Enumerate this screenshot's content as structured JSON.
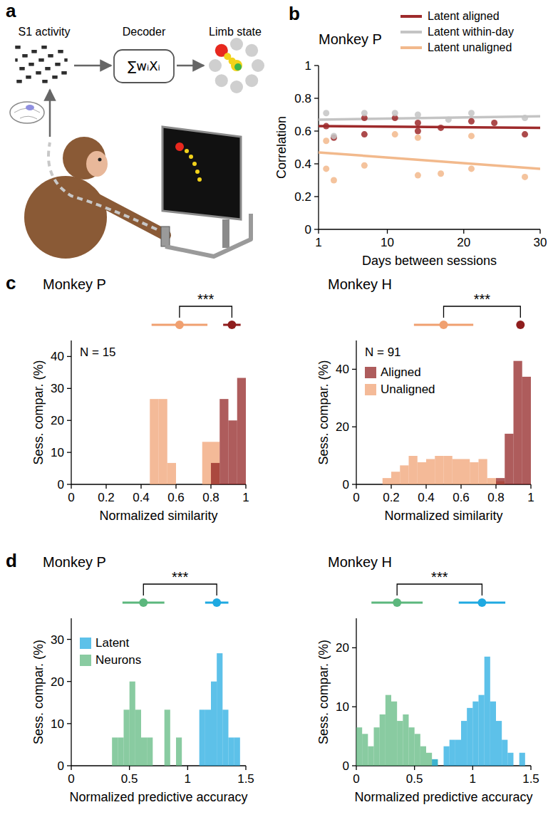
{
  "diagram": {
    "panel": "a",
    "input_label": "S1 activity",
    "decoder_label": "Decoder",
    "output_label": "Limb state",
    "formula": "∑wᵢXᵢ"
  },
  "chart_data": [
    {
      "panel": "b",
      "type": "scatter",
      "title": "Monkey P",
      "x_label": "Days between sessions",
      "y_label": "Correlation",
      "xlim": [
        1,
        30
      ],
      "ylim": [
        0,
        1
      ],
      "xticks": [
        1,
        10,
        20,
        30
      ],
      "yticks": [
        0,
        0.2,
        0.4,
        0.6,
        0.8,
        1
      ],
      "legend": "upper right",
      "marker": "circle",
      "series": [
        {
          "name": "Latent aligned",
          "color": "#9e2a2b",
          "x": [
            2,
            3,
            7,
            7,
            11,
            14,
            14,
            17,
            21,
            24,
            28
          ],
          "values": [
            0.63,
            0.56,
            0.58,
            0.68,
            0.68,
            0.65,
            0.6,
            0.62,
            0.66,
            0.65,
            0.58
          ],
          "trend": [
            0.63,
            0.62
          ]
        },
        {
          "name": "Latent within-day",
          "color": "#c4c4c4",
          "x": [
            2,
            3,
            7,
            11,
            14,
            18,
            21,
            28
          ],
          "values": [
            0.71,
            0.57,
            0.71,
            0.71,
            0.7,
            0.67,
            0.71,
            0.68
          ],
          "trend": [
            0.67,
            0.69
          ]
        },
        {
          "name": "Latent unaligned",
          "color": "#f2b98c",
          "x": [
            2,
            2,
            3,
            7,
            11,
            14,
            14,
            17,
            21,
            21,
            28
          ],
          "values": [
            0.54,
            0.37,
            0.3,
            0.39,
            0.58,
            0.33,
            0.56,
            0.34,
            0.57,
            0.37,
            0.32
          ],
          "trend": [
            0.47,
            0.37
          ]
        }
      ]
    },
    {
      "panel": "c",
      "type": "histogram",
      "title": "Monkey P",
      "x_label": "Normalized similarity",
      "y_label": "Sess. compar. (%)",
      "xlim": [
        0,
        1
      ],
      "ylim": [
        0,
        45
      ],
      "xticks": [
        0,
        0.2,
        0.4,
        0.6,
        0.8,
        1
      ],
      "yticks": [
        0,
        10,
        20,
        30,
        40
      ],
      "annotation": "N = 15",
      "significance": "***",
      "bins": [
        0,
        0.05,
        0.1,
        0.15,
        0.2,
        0.25,
        0.3,
        0.35,
        0.4,
        0.45,
        0.5,
        0.55,
        0.6,
        0.65,
        0.7,
        0.75,
        0.8,
        0.85,
        0.9,
        0.95,
        1
      ],
      "series": [
        {
          "color": "#8f1d1d",
          "values": [
            0,
            0,
            0,
            0,
            0,
            0,
            0,
            0,
            0,
            0,
            0,
            0,
            0,
            0,
            0,
            0,
            6.7,
            26.7,
            20,
            33.3
          ],
          "mean": 0.92,
          "sd": 0.05
        },
        {
          "color": "#f0a070",
          "values": [
            0,
            0,
            0,
            0,
            0,
            0,
            0,
            0,
            0,
            26.7,
            26.7,
            6.7,
            0,
            0,
            0,
            13.3,
            13.3,
            0,
            0,
            0
          ],
          "mean": 0.62,
          "sd": 0.16
        }
      ]
    },
    {
      "type": "histogram",
      "title": "Monkey H",
      "x_label": "Normalized similarity",
      "y_label": "Sess. compar. (%)",
      "xlim": [
        0,
        1
      ],
      "ylim": [
        0,
        50
      ],
      "xticks": [
        0,
        0.2,
        0.4,
        0.6,
        0.8,
        1
      ],
      "yticks": [
        0,
        20,
        40
      ],
      "annotation": "N = 91",
      "significance": "***",
      "legend": "upper left",
      "bins": [
        0,
        0.05,
        0.1,
        0.15,
        0.2,
        0.25,
        0.3,
        0.35,
        0.4,
        0.45,
        0.5,
        0.55,
        0.6,
        0.65,
        0.7,
        0.75,
        0.8,
        0.85,
        0.9,
        0.95,
        1
      ],
      "series": [
        {
          "name": "Aligned",
          "color": "#8f1d1d",
          "values": [
            0,
            0,
            0,
            0,
            0,
            0,
            0,
            0,
            0,
            0,
            0,
            0,
            0,
            0,
            0,
            0,
            2.2,
            17.6,
            42.9,
            37.4
          ],
          "mean": 0.94,
          "sd": 0.02
        },
        {
          "name": "Unaligned",
          "color": "#f0a070",
          "values": [
            0,
            0,
            0,
            2.2,
            4.4,
            6.6,
            9.9,
            7.7,
            8.8,
            9.9,
            9.9,
            8.8,
            8.8,
            7.7,
            8.8,
            2.2,
            1.1,
            0,
            0,
            0
          ],
          "mean": 0.5,
          "sd": 0.17
        }
      ]
    },
    {
      "panel": "d",
      "type": "histogram",
      "title": "Monkey P",
      "x_label": "Normalized predictive accuracy",
      "y_label": "Sess. compar. (%)",
      "xlim": [
        0,
        1.5
      ],
      "ylim": [
        0,
        35
      ],
      "xticks": [
        0,
        0.5,
        1,
        1.5
      ],
      "yticks": [
        0,
        10,
        20,
        30
      ],
      "significance": "***",
      "legend": "upper left",
      "bins": [
        0,
        0.05,
        0.1,
        0.15,
        0.2,
        0.25,
        0.3,
        0.35,
        0.4,
        0.45,
        0.5,
        0.55,
        0.6,
        0.65,
        0.7,
        0.75,
        0.8,
        0.85,
        0.9,
        0.95,
        1,
        1.05,
        1.1,
        1.15,
        1.2,
        1.25,
        1.3,
        1.35,
        1.4,
        1.45,
        1.5
      ],
      "series": [
        {
          "name": "Latent",
          "color": "#1fa9e1",
          "values": [
            0,
            0,
            0,
            0,
            0,
            0,
            0,
            0,
            0,
            0,
            0,
            0,
            0,
            0,
            0,
            0,
            0,
            0,
            0,
            0,
            0,
            0,
            13.3,
            13.3,
            20,
            26.7,
            13.3,
            6.7,
            6.7,
            0
          ],
          "mean": 1.25,
          "sd": 0.1
        },
        {
          "name": "Neurons",
          "color": "#5cb77d",
          "values": [
            0,
            0,
            0,
            0,
            0,
            0,
            0,
            6.7,
            6.7,
            13.3,
            20,
            13.3,
            6.7,
            6.7,
            0,
            0,
            13.3,
            0,
            6.7,
            0,
            0,
            0,
            0,
            0,
            0,
            0,
            0,
            0,
            0,
            0
          ],
          "mean": 0.62,
          "sd": 0.18
        }
      ]
    },
    {
      "type": "histogram",
      "title": "Monkey H",
      "x_label": "Normalized predictive accuracy",
      "y_label": "Sess. compar. (%)",
      "xlim": [
        0,
        1.5
      ],
      "ylim": [
        0,
        25
      ],
      "xticks": [
        0,
        0.5,
        1,
        1.5
      ],
      "yticks": [
        0,
        10,
        20
      ],
      "significance": "***",
      "bins": [
        0,
        0.05,
        0.1,
        0.15,
        0.2,
        0.25,
        0.3,
        0.35,
        0.4,
        0.45,
        0.5,
        0.55,
        0.6,
        0.65,
        0.7,
        0.75,
        0.8,
        0.85,
        0.9,
        0.95,
        1,
        1.05,
        1.1,
        1.15,
        1.2,
        1.25,
        1.3,
        1.35,
        1.4,
        1.45,
        1.5
      ],
      "series": [
        {
          "color": "#1fa9e1",
          "values": [
            0,
            0,
            0,
            0,
            0,
            0,
            0,
            0,
            0,
            0,
            0,
            0,
            0,
            1.1,
            0,
            3.3,
            4.4,
            4.4,
            7.6,
            9.8,
            10.9,
            12,
            18.5,
            10.9,
            7.6,
            4.4,
            2.2,
            0,
            2.2,
            0
          ],
          "mean": 1.08,
          "sd": 0.2
        },
        {
          "color": "#5cb77d",
          "values": [
            6.5,
            5.4,
            3.3,
            6.5,
            8.7,
            12,
            10.9,
            7.6,
            8.7,
            6.5,
            5.4,
            3.3,
            2.2,
            1.1,
            0,
            0,
            0,
            0,
            0,
            0,
            0,
            0,
            0,
            0,
            0,
            0,
            0,
            0,
            0,
            0
          ],
          "mean": 0.35,
          "sd": 0.22
        }
      ]
    }
  ]
}
